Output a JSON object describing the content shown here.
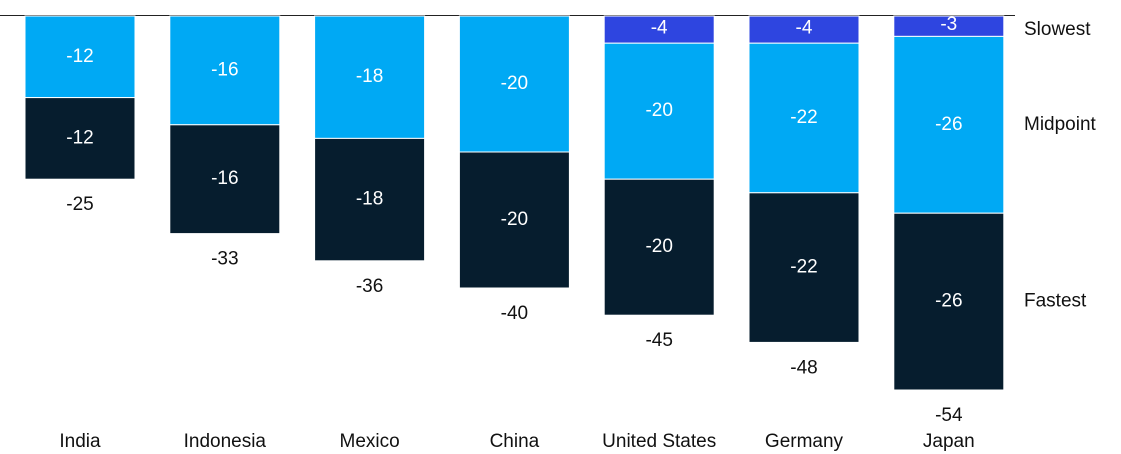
{
  "chart_data": {
    "type": "bar",
    "stacked": true,
    "direction": "negative",
    "categories": [
      "India",
      "Indonesia",
      "Mexico",
      "China",
      "United States",
      "Germany",
      "Japan"
    ],
    "series": [
      {
        "name": "Slowest",
        "color": "#2E45E0",
        "values": [
          0,
          0,
          0,
          0,
          -4,
          -4,
          -3
        ],
        "labels": [
          "",
          "",
          "",
          "",
          "-4",
          "-4",
          "-3"
        ]
      },
      {
        "name": "Midpoint",
        "color": "#00A9F4",
        "values": [
          -12,
          -16,
          -18,
          -20,
          -20,
          -22,
          -26
        ],
        "labels": [
          "-12",
          "-16",
          "-18",
          "-20",
          "-20",
          "-22",
          "-26"
        ]
      },
      {
        "name": "Fastest",
        "color": "#061D2E",
        "values": [
          -12,
          -16,
          -18,
          -20,
          -20,
          -22,
          -26
        ],
        "labels": [
          "-12",
          "-16",
          "-18",
          "-20",
          "-20",
          "-22",
          "-26"
        ]
      }
    ],
    "totals": [
      "-25",
      "-33",
      "-36",
      "-40",
      "-45",
      "-48",
      "-54"
    ],
    "legend_placement": "right",
    "grid": false
  }
}
